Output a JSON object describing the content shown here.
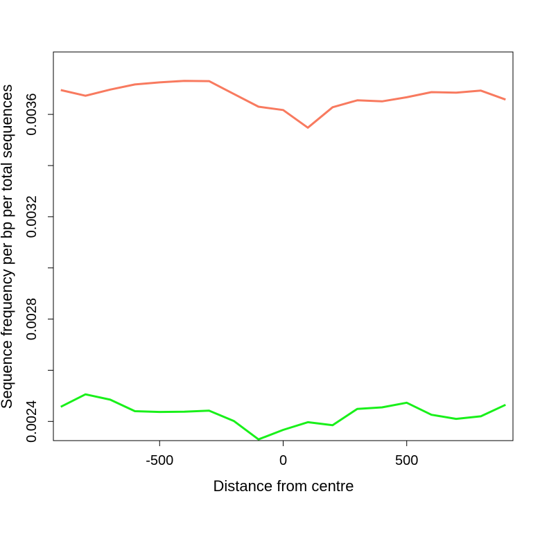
{
  "chart_data": {
    "type": "line",
    "title": "",
    "xlabel": "Distance from centre",
    "ylabel": "Sequence frequency per bp per total sequences",
    "xlim": [
      -930,
      930
    ],
    "ylim": [
      0.002325,
      0.003844
    ],
    "x_ticks": [
      -500,
      0,
      500
    ],
    "x_tick_labels": [
      "-500",
      "0",
      "500"
    ],
    "y_ticks": [
      0.0024,
      0.0026,
      0.0028,
      0.003,
      0.0032,
      0.0034,
      0.0036
    ],
    "y_tick_labels": [
      "0.0024",
      "",
      "0.0028",
      "",
      "0.0032",
      "",
      "0.0036"
    ],
    "grid": false,
    "legend": "none",
    "x": [
      -900,
      -800,
      -700,
      -600,
      -500,
      -400,
      -300,
      -200,
      -100,
      0,
      100,
      200,
      300,
      400,
      500,
      600,
      700,
      800,
      900
    ],
    "series": [
      {
        "color": "#F87A5F",
        "values": [
          0.003695,
          0.003673,
          0.003697,
          0.003717,
          0.003725,
          0.003731,
          0.00373,
          0.00368,
          0.00363,
          0.003617,
          0.003548,
          0.003628,
          0.003655,
          0.003651,
          0.003667,
          0.003687,
          0.003685,
          0.003693,
          0.003658
        ]
      },
      {
        "color": "#19F01A",
        "values": [
          0.002457,
          0.002506,
          0.002485,
          0.00244,
          0.002437,
          0.002438,
          0.002442,
          0.002402,
          0.00233,
          0.002367,
          0.002397,
          0.002385,
          0.002449,
          0.002455,
          0.002473,
          0.002426,
          0.00241,
          0.00242,
          0.002465
        ]
      }
    ]
  }
}
